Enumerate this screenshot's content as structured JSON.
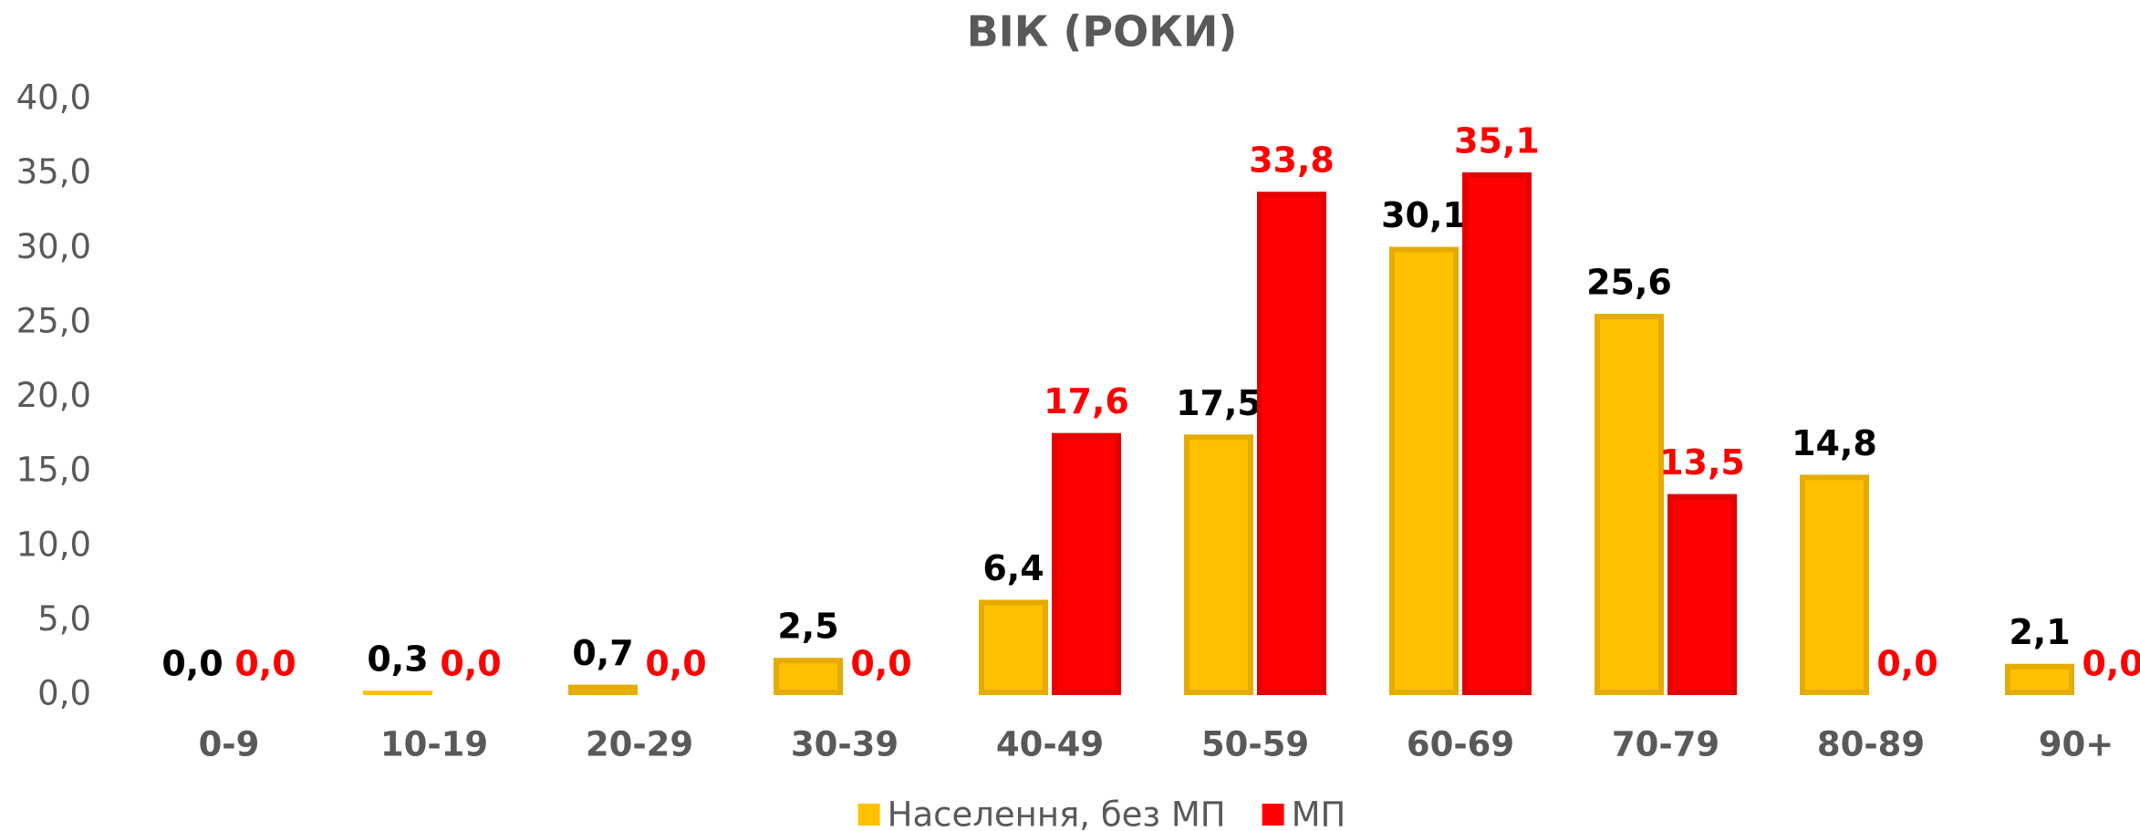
{
  "chart_data": {
    "type": "bar",
    "title": "ВІК (РОКИ)",
    "categories": [
      "0-9",
      "10-19",
      "20-29",
      "30-39",
      "40-49",
      "50-59",
      "60-69",
      "70-79",
      "80-89",
      "90+"
    ],
    "series": [
      {
        "name": "Населення, без МП",
        "color": "#FFC000",
        "label_color": "#000000",
        "values": [
          0.0,
          0.3,
          0.7,
          2.5,
          6.4,
          17.5,
          30.1,
          25.6,
          14.8,
          2.1
        ],
        "value_labels": [
          "0,0",
          "0,3",
          "0,7",
          "2,5",
          "6,4",
          "17,5",
          "30,1",
          "25,6",
          "14,8",
          "2,1"
        ]
      },
      {
        "name": "МП",
        "color": "#FF0000",
        "label_color": "#FF0000",
        "values": [
          0.0,
          0.0,
          0.0,
          0.0,
          17.6,
          33.8,
          35.1,
          13.5,
          0.0,
          0.0
        ],
        "value_labels": [
          "0,0",
          "0,0",
          "0,0",
          "0,0",
          "17,6",
          "33,8",
          "35,1",
          "13,5",
          "0,0",
          "0,0"
        ]
      }
    ],
    "ylim": [
      0,
      40
    ],
    "yticks": [
      {
        "value": 0,
        "label": "0,0"
      },
      {
        "value": 5,
        "label": "5,0"
      },
      {
        "value": 10,
        "label": "10,0"
      },
      {
        "value": 15,
        "label": "15,0"
      },
      {
        "value": 20,
        "label": "20,0"
      },
      {
        "value": 25,
        "label": "25,0"
      },
      {
        "value": 30,
        "label": "30,0"
      },
      {
        "value": 35,
        "label": "35,0"
      },
      {
        "value": 40,
        "label": "40,0"
      }
    ],
    "grid": false,
    "legend": "bottom"
  }
}
